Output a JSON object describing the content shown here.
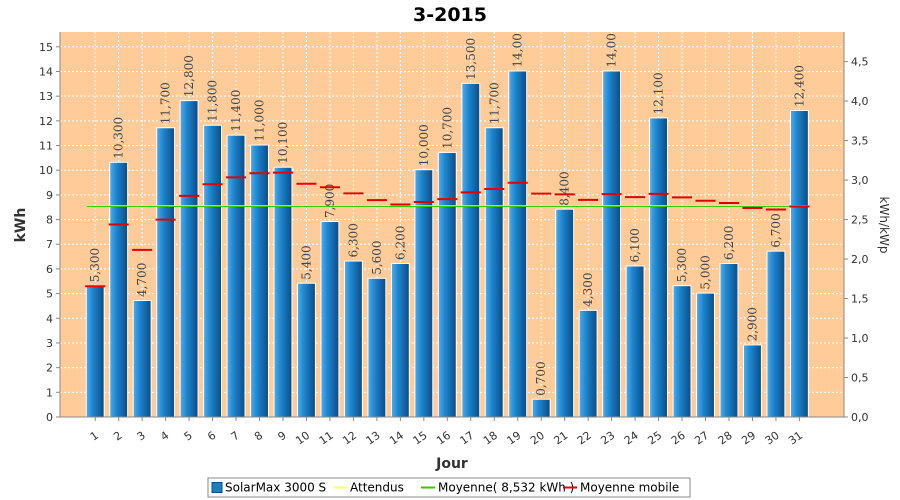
{
  "chart_data": {
    "type": "bar",
    "title": "3-2015",
    "xlabel": "Jour",
    "ylabel": "kWh",
    "y2label": "kWh/kWp",
    "ylim": [
      0,
      15.6
    ],
    "y2lim": [
      0,
      4.875
    ],
    "yticks": [
      0,
      1,
      2,
      3,
      4,
      5,
      6,
      7,
      8,
      9,
      10,
      11,
      12,
      13,
      14,
      15
    ],
    "y2ticks": [
      "0,0",
      "0,5",
      "1,0",
      "1,5",
      "2,0",
      "2,5",
      "3,0",
      "3,5",
      "4,0",
      "4,5"
    ],
    "grid": true,
    "legend_position": "bottom",
    "categories": [
      "1",
      "2",
      "3",
      "4",
      "5",
      "6",
      "7",
      "8",
      "9",
      "10",
      "11",
      "12",
      "13",
      "14",
      "15",
      "16",
      "17",
      "18",
      "19",
      "20",
      "21",
      "22",
      "23",
      "24",
      "25",
      "26",
      "27",
      "28",
      "29",
      "30",
      "31"
    ],
    "values": [
      5.3,
      10.3,
      4.7,
      11.7,
      12.8,
      11.8,
      11.4,
      11.0,
      10.1,
      5.4,
      7.9,
      6.3,
      5.6,
      6.2,
      10.0,
      10.7,
      13.5,
      11.7,
      14.0,
      0.7,
      8.4,
      4.3,
      14.0,
      6.1,
      12.1,
      5.3,
      5.0,
      6.2,
      2.9,
      6.7,
      12.4
    ],
    "value_labels": [
      "5,300",
      "10,300",
      "4,700",
      "11,700",
      "12,800",
      "11,800",
      "11,400",
      "11,000",
      "10,100",
      "5,400",
      "7,900",
      "6,300",
      "5,600",
      "6,200",
      "10,000",
      "10,700",
      "13,500",
      "11,700",
      "14,00",
      "0,700",
      "8,400",
      "4,300",
      "14,00",
      "6,100",
      "12,100",
      "5,300",
      "5,000",
      "6,200",
      "2,900",
      "6,700",
      "12,400"
    ],
    "moving_average": [
      5.3,
      7.8,
      6.77,
      8.0,
      8.96,
      9.43,
      9.71,
      9.875,
      9.9,
      9.45,
      9.31,
      9.06,
      8.79,
      8.61,
      8.71,
      8.83,
      9.1,
      9.24,
      9.49,
      9.05,
      9.02,
      8.8,
      9.03,
      8.91,
      9.04,
      8.9,
      8.76,
      8.67,
      8.47,
      8.41,
      8.53
    ],
    "average": 8.532,
    "expected": 8.55,
    "series": [
      {
        "name": "SolarMax 3000 S",
        "color": "#1a7ec4"
      },
      {
        "name": "Attendus",
        "color": "#ffff66"
      },
      {
        "name": "Moyenne( 8,532 kWh )",
        "color": "#33cc00"
      },
      {
        "name": "Moyenne mobile",
        "color": "#e00000"
      }
    ],
    "plot_background": "#ffcc99"
  }
}
